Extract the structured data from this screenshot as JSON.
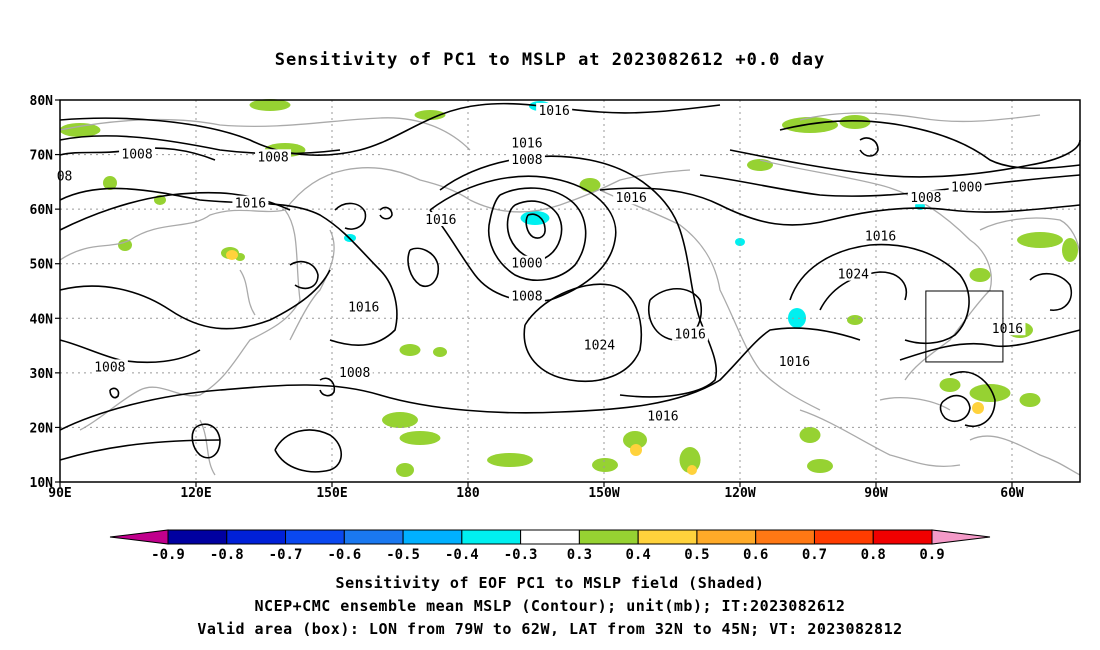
{
  "title": "Sensitivity of PC1 to MSLP at 2023082612 +0.0 day",
  "axes": {
    "lat_labels": [
      "80N",
      "70N",
      "60N",
      "50N",
      "40N",
      "30N",
      "20N",
      "10N"
    ],
    "lon_labels": [
      "90E",
      "120E",
      "150E",
      "180",
      "150W",
      "120W",
      "90W",
      "60W"
    ]
  },
  "contour_labels": [
    {
      "text": "1016",
      "lon": -161,
      "lat": 78
    },
    {
      "text": "1016",
      "lon": -167,
      "lat": 72
    },
    {
      "text": "1008",
      "lon": -167,
      "lat": 69
    },
    {
      "text": "1008",
      "lon": 107,
      "lat": 70
    },
    {
      "text": "1008",
      "lon": 137,
      "lat": 69.5
    },
    {
      "text": "08",
      "lon": 91,
      "lat": 66
    },
    {
      "text": "1016",
      "lon": 132,
      "lat": 61
    },
    {
      "text": "1016",
      "lon": 174,
      "lat": 58
    },
    {
      "text": "1016",
      "lon": -144,
      "lat": 62
    },
    {
      "text": "1000",
      "lon": -167,
      "lat": 50
    },
    {
      "text": "1008",
      "lon": -167,
      "lat": 44
    },
    {
      "text": "1016",
      "lon": 157,
      "lat": 42
    },
    {
      "text": "1024",
      "lon": -151,
      "lat": 35
    },
    {
      "text": "1016",
      "lon": -131,
      "lat": 37
    },
    {
      "text": "1008",
      "lon": 101,
      "lat": 31
    },
    {
      "text": "1008",
      "lon": 155,
      "lat": 30
    },
    {
      "text": "1016",
      "lon": -137,
      "lat": 22
    },
    {
      "text": "1016",
      "lon": -108,
      "lat": 32
    },
    {
      "text": "1024",
      "lon": -95,
      "lat": 48
    },
    {
      "text": "1016",
      "lon": -89,
      "lat": 55
    },
    {
      "text": "1008",
      "lon": -79,
      "lat": 62
    },
    {
      "text": "1000",
      "lon": -70,
      "lat": 64
    },
    {
      "text": "1016",
      "lon": -61,
      "lat": 38
    }
  ],
  "colorbar": {
    "labels": [
      "-0.9",
      "-0.8",
      "-0.7",
      "-0.6",
      "-0.5",
      "-0.4",
      "-0.3",
      "0.3",
      "0.4",
      "0.5",
      "0.6",
      "0.7",
      "0.8",
      "0.9"
    ],
    "left_arrow_color": "#c0008c",
    "right_arrow_color": "#f49ac8",
    "colors": [
      "#0000a0",
      "#0020d8",
      "#0a48f0",
      "#1a78f0",
      "#00b0ff",
      "#00f0f0",
      "#ffffff",
      "#96d232",
      "#ffd23c",
      "#ffaa28",
      "#ff7814",
      "#ff3c00",
      "#f00000"
    ]
  },
  "box": {
    "lon_min": -79,
    "lon_max": -62,
    "lat_min": 32,
    "lat_max": 45
  },
  "captions": [
    "Sensitivity of EOF PC1 to MSLP field (Shaded)",
    "NCEP+CMC ensemble mean MSLP (Contour); unit(mb); IT:2023082612",
    "Valid area (box): LON from 79W to 62W, LAT from 32N to 45N; VT: 2023082812"
  ]
}
